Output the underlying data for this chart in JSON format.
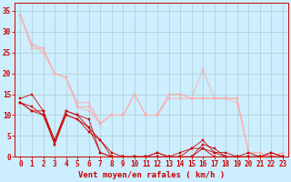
{
  "background_color": "#cceeff",
  "grid_color": "#aacccc",
  "line_color_dark": "#cc0000",
  "line_color_light": "#ffaaaa",
  "xlabel": "Vent moyen/en rafales ( km/h )",
  "xlabel_color": "#cc0000",
  "xlabel_fontsize": 6.5,
  "ylabel_ticks": [
    0,
    5,
    10,
    15,
    20,
    25,
    30,
    35
  ],
  "xlim": [
    -0.5,
    23.5
  ],
  "ylim": [
    0,
    37
  ],
  "tick_fontsize": 5.5,
  "tick_color": "#cc0000",
  "series_light": [
    {
      "x": [
        0,
        1,
        2,
        3,
        4,
        5,
        6,
        7,
        8,
        9,
        10,
        11,
        12,
        13,
        14,
        15,
        16,
        17,
        18,
        19,
        20,
        21,
        22,
        23
      ],
      "y": [
        34,
        27,
        26,
        20,
        19,
        12,
        12,
        8,
        10,
        10,
        15,
        10,
        10,
        15,
        15,
        14,
        21,
        14,
        14,
        14,
        1,
        1,
        0,
        1
      ]
    },
    {
      "x": [
        0,
        1,
        2,
        3,
        4,
        5,
        6,
        7,
        8,
        9,
        10,
        11,
        12,
        13,
        14,
        15,
        16,
        17,
        18,
        19,
        20,
        21,
        22,
        23
      ],
      "y": [
        34,
        26,
        26,
        20,
        19,
        12,
        11,
        8,
        10,
        10,
        15,
        10,
        10,
        15,
        15,
        14,
        14,
        14,
        14,
        14,
        1,
        1,
        0,
        1
      ]
    },
    {
      "x": [
        0,
        1,
        2,
        3,
        4,
        5,
        6,
        7,
        8,
        9,
        10,
        11,
        12,
        13,
        14,
        15,
        16,
        17,
        18,
        19,
        20,
        21,
        22,
        23
      ],
      "y": [
        34,
        27,
        25,
        20,
        19,
        13,
        13,
        8,
        10,
        10,
        15,
        10,
        10,
        14,
        14,
        14,
        14,
        14,
        14,
        13,
        1,
        0,
        0,
        1
      ]
    }
  ],
  "series_dark": [
    {
      "x": [
        0,
        1,
        2,
        3,
        4,
        5,
        6,
        7,
        8,
        9,
        10,
        11,
        12,
        13,
        14,
        15,
        16,
        17,
        18,
        19,
        20,
        21,
        22,
        23
      ],
      "y": [
        14,
        15,
        11,
        3,
        11,
        10,
        9,
        1,
        0,
        0,
        0,
        0,
        0,
        0,
        0,
        0,
        3,
        2,
        0,
        0,
        0,
        0,
        1,
        0
      ]
    },
    {
      "x": [
        0,
        1,
        2,
        3,
        4,
        5,
        6,
        7,
        8,
        9,
        10,
        11,
        12,
        13,
        14,
        15,
        16,
        17,
        18,
        19,
        20,
        21,
        22,
        23
      ],
      "y": [
        13,
        11,
        11,
        4,
        11,
        10,
        7,
        1,
        0,
        0,
        0,
        0,
        1,
        0,
        0,
        2,
        2,
        1,
        1,
        0,
        1,
        0,
        0,
        0
      ]
    },
    {
      "x": [
        0,
        1,
        2,
        3,
        4,
        5,
        6,
        7,
        8,
        9,
        10,
        11,
        12,
        13,
        14,
        15,
        16,
        17,
        18,
        19,
        20,
        21,
        22,
        23
      ],
      "y": [
        13,
        12,
        10,
        3,
        10,
        9,
        7,
        4,
        0,
        0,
        0,
        0,
        0,
        0,
        1,
        2,
        4,
        1,
        0,
        0,
        0,
        0,
        0,
        0
      ]
    },
    {
      "x": [
        0,
        1,
        2,
        3,
        4,
        5,
        6,
        7,
        8,
        9,
        10,
        11,
        12,
        13,
        14,
        15,
        16,
        17,
        18,
        19,
        20,
        21,
        22,
        23
      ],
      "y": [
        13,
        11,
        10,
        4,
        10,
        9,
        6,
        4,
        1,
        0,
        0,
        0,
        1,
        0,
        0,
        0,
        2,
        0,
        0,
        0,
        0,
        0,
        1,
        0
      ]
    }
  ],
  "marker_size": 2.0,
  "line_width": 0.6
}
